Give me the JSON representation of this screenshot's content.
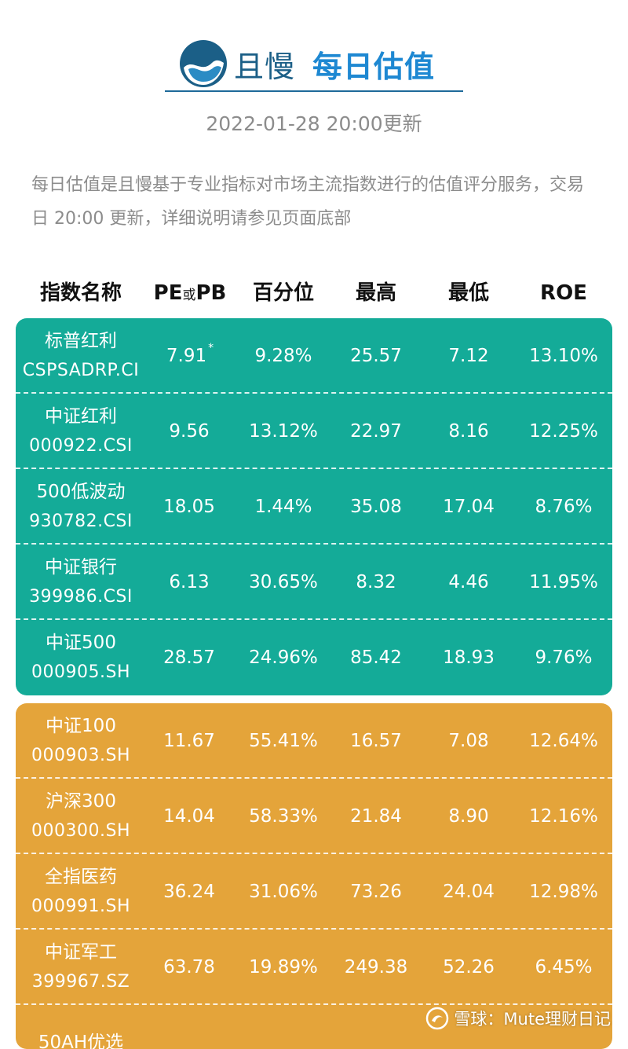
{
  "header": {
    "brand": "且慢",
    "title": "每日估值",
    "update_time": "2022-01-28 20:00更新"
  },
  "description": "每日估值是且慢基于专业指标对市场主流指数进行的估值评分服务，交易日 20:00 更新，详细说明请参见页面底部",
  "columns": {
    "name": "指数名称",
    "pe_main": "PE",
    "pe_or": "或",
    "pe_pb": "PB",
    "percentile": "百分位",
    "high": "最高",
    "low": "最低",
    "roe": "ROE"
  },
  "colors": {
    "green_group": "#14ab98",
    "orange_group": "#e4a43a",
    "brand_blue": "#1b5f87",
    "title_blue": "#1e88d2"
  },
  "green_rows": [
    {
      "name": "标普红利",
      "code": "CSPSADRP.CI",
      "value": "7.91",
      "mark": "*",
      "percentile": "9.28%",
      "high": "25.57",
      "low": "7.12",
      "roe": "13.10%"
    },
    {
      "name": "中证红利",
      "code": "000922.CSI",
      "value": "9.56",
      "mark": "",
      "percentile": "13.12%",
      "high": "22.97",
      "low": "8.16",
      "roe": "12.25%"
    },
    {
      "name": "500低波动",
      "code": "930782.CSI",
      "value": "18.05",
      "mark": "",
      "percentile": "1.44%",
      "high": "35.08",
      "low": "17.04",
      "roe": "8.76%"
    },
    {
      "name": "中证银行",
      "code": "399986.CSI",
      "value": "6.13",
      "mark": "",
      "percentile": "30.65%",
      "high": "8.32",
      "low": "4.46",
      "roe": "11.95%"
    },
    {
      "name": "中证500",
      "code": "000905.SH",
      "value": "28.57",
      "mark": "",
      "percentile": "24.96%",
      "high": "85.42",
      "low": "18.93",
      "roe": "9.76%"
    }
  ],
  "orange_rows": [
    {
      "name": "中证100",
      "code": "000903.SH",
      "value": "11.67",
      "mark": "",
      "percentile": "55.41%",
      "high": "16.57",
      "low": "7.08",
      "roe": "12.64%"
    },
    {
      "name": "沪深300",
      "code": "000300.SH",
      "value": "14.04",
      "mark": "",
      "percentile": "58.33%",
      "high": "21.84",
      "low": "8.90",
      "roe": "12.16%"
    },
    {
      "name": "全指医药",
      "code": "000991.SH",
      "value": "36.24",
      "mark": "",
      "percentile": "31.06%",
      "high": "73.26",
      "low": "24.04",
      "roe": "12.98%"
    },
    {
      "name": "中证军工",
      "code": "399967.SZ",
      "value": "63.78",
      "mark": "",
      "percentile": "19.89%",
      "high": "249.38",
      "low": "52.26",
      "roe": "6.45%"
    },
    {
      "name": "50AH优选",
      "code": "",
      "value": "",
      "mark": "",
      "percentile": "",
      "high": "",
      "low": "",
      "roe": ""
    }
  ],
  "watermark": {
    "site": "雪球",
    "separator": "：",
    "author": "Mute理财日记"
  }
}
